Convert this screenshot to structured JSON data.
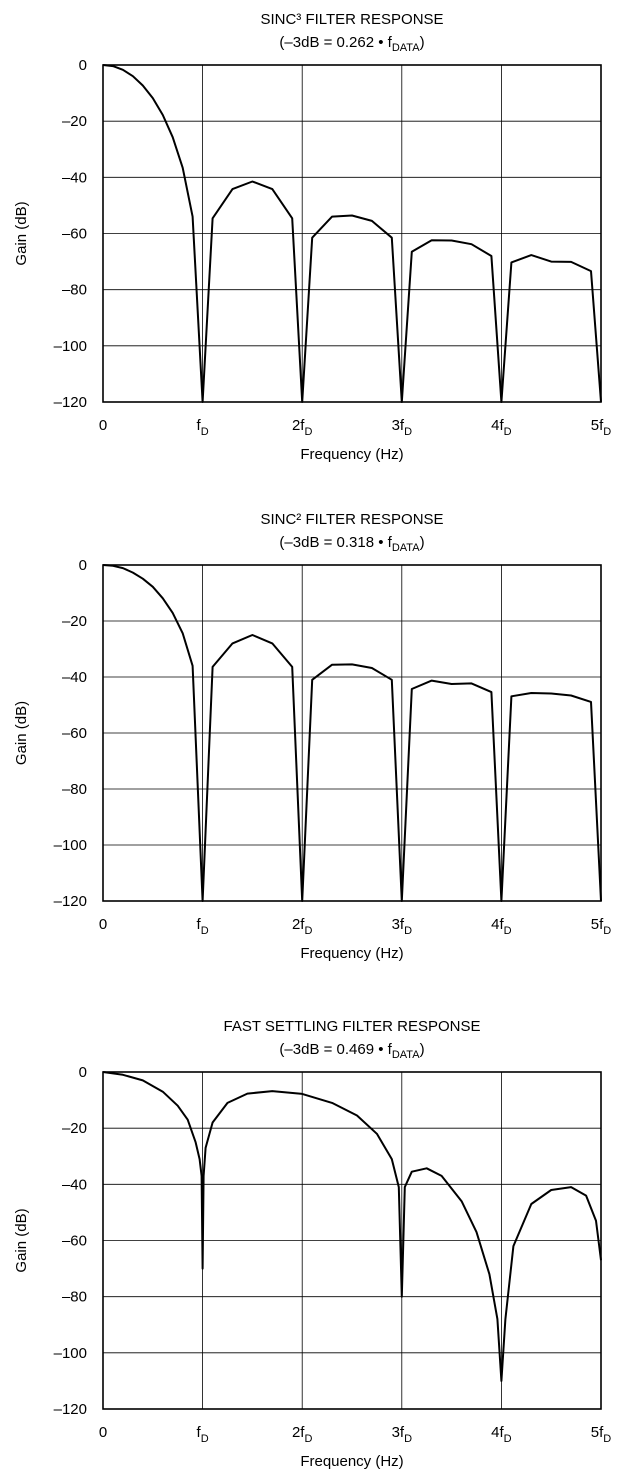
{
  "chart_data": [
    {
      "type": "line",
      "title": "SINC³ FILTER RESPONSE",
      "subtitle_parts": [
        "(–3dB = 0.262 • f",
        "DATA",
        ")"
      ],
      "xlabel": "Frequency (Hz)",
      "ylabel": "Gain (dB)",
      "xlim": [
        0,
        5
      ],
      "ylim": [
        -120,
        0
      ],
      "grid": true,
      "yticks": [
        "0",
        "–20",
        "–40",
        "–60",
        "–80",
        "–100",
        "–120"
      ],
      "yticks_values": [
        0,
        -20,
        -40,
        -60,
        -80,
        -100,
        -120
      ],
      "xticks": [
        {
          "value": 0,
          "main": "0",
          "sub": ""
        },
        {
          "value": 1,
          "main": "f",
          "sub": "D"
        },
        {
          "value": 2,
          "main": "2f",
          "sub": "D"
        },
        {
          "value": 3,
          "main": "3f",
          "sub": "D"
        },
        {
          "value": 4,
          "main": "4f",
          "sub": "D"
        },
        {
          "value": 5,
          "main": "5f",
          "sub": "D"
        }
      ],
      "series": [
        {
          "x": [
            0,
            0.1,
            0.2,
            0.3,
            0.4,
            0.5,
            0.6,
            0.7,
            0.8,
            0.9,
            1.0,
            1.1,
            1.3,
            1.5,
            1.7,
            1.9,
            2.0,
            2.1,
            2.3,
            2.5,
            2.7,
            2.9,
            3.0,
            3.1,
            3.3,
            3.5,
            3.7,
            3.9,
            4.0,
            4.1,
            4.3,
            4.5,
            4.7,
            4.9,
            5.0
          ],
          "y": [
            0,
            -0.4,
            -1.7,
            -4,
            -7.3,
            -11.8,
            -17.8,
            -25.7,
            -36.6,
            -54,
            -120,
            -54.6,
            -44.2,
            -41.5,
            -44.2,
            -54.6,
            -120,
            -61.5,
            -54.0,
            -53.6,
            -55.5,
            -61.5,
            -120,
            -66.5,
            -62.4,
            -62.5,
            -63.8,
            -68.0,
            -120,
            -70.3,
            -67.7,
            -70.0,
            -70.1,
            -73.4,
            -120
          ]
        }
      ]
    },
    {
      "type": "line",
      "title": "SINC² FILTER RESPONSE",
      "subtitle_parts": [
        "(–3dB = 0.318 • f",
        "DATA",
        ")"
      ],
      "xlabel": "Frequency (Hz)",
      "ylabel": "Gain (dB)",
      "xlim": [
        0,
        5
      ],
      "ylim": [
        -120,
        0
      ],
      "grid": true,
      "yticks": [
        "0",
        "–20",
        "–40",
        "–60",
        "–80",
        "–100",
        "–120"
      ],
      "yticks_values": [
        0,
        -20,
        -40,
        -60,
        -80,
        -100,
        -120
      ],
      "xticks": [
        {
          "value": 0,
          "main": "0",
          "sub": ""
        },
        {
          "value": 1,
          "main": "f",
          "sub": "D"
        },
        {
          "value": 2,
          "main": "2f",
          "sub": "D"
        },
        {
          "value": 3,
          "main": "3f",
          "sub": "D"
        },
        {
          "value": 4,
          "main": "4f",
          "sub": "D"
        },
        {
          "value": 5,
          "main": "5f",
          "sub": "D"
        }
      ],
      "series": [
        {
          "x": [
            0,
            0.1,
            0.2,
            0.3,
            0.4,
            0.5,
            0.6,
            0.7,
            0.8,
            0.9,
            1.0,
            1.1,
            1.3,
            1.5,
            1.7,
            1.9,
            2.0,
            2.1,
            2.3,
            2.5,
            2.7,
            2.9,
            3.0,
            3.1,
            3.3,
            3.5,
            3.7,
            3.9,
            4.0,
            4.1,
            4.3,
            4.5,
            4.7,
            4.9,
            5.0
          ],
          "y": [
            0,
            -0.3,
            -1.1,
            -2.7,
            -4.9,
            -7.8,
            -11.9,
            -17.1,
            -24.4,
            -36.0,
            -120,
            -36.4,
            -28.0,
            -25.0,
            -28.0,
            -36.4,
            -120,
            -41.0,
            -35.6,
            -35.5,
            -36.8,
            -41.0,
            -120,
            -44.3,
            -41.3,
            -42.5,
            -42.3,
            -45.4,
            -120,
            -46.9,
            -45.7,
            -45.9,
            -46.6,
            -48.9,
            -120
          ]
        }
      ]
    },
    {
      "type": "line",
      "title": "FAST SETTLING FILTER RESPONSE",
      "subtitle_parts": [
        "(–3dB = 0.469 • f",
        "DATA",
        ")"
      ],
      "xlabel": "Frequency (Hz)",
      "ylabel": "Gain (dB)",
      "xlim": [
        0,
        5
      ],
      "ylim": [
        -120,
        0
      ],
      "grid": true,
      "yticks": [
        "0",
        "–20",
        "–40",
        "–60",
        "–80",
        "–100",
        "–120"
      ],
      "yticks_values": [
        0,
        -20,
        -40,
        -60,
        -80,
        -100,
        -120
      ],
      "xticks": [
        {
          "value": 0,
          "main": "0",
          "sub": ""
        },
        {
          "value": 1,
          "main": "f",
          "sub": "D"
        },
        {
          "value": 2,
          "main": "2f",
          "sub": "D"
        },
        {
          "value": 3,
          "main": "3f",
          "sub": "D"
        },
        {
          "value": 4,
          "main": "4f",
          "sub": "D"
        },
        {
          "value": 5,
          "main": "5f",
          "sub": "D"
        }
      ],
      "series": [
        {
          "x": [
            0,
            0.2,
            0.4,
            0.6,
            0.75,
            0.85,
            0.93,
            0.97,
            0.99,
            1.0,
            1.01,
            1.03,
            1.1,
            1.25,
            1.45,
            1.7,
            2.0,
            2.3,
            2.55,
            2.75,
            2.9,
            2.97,
            3.0,
            3.03,
            3.1,
            3.25,
            3.4,
            3.6,
            3.75,
            3.88,
            3.96,
            4.0,
            4.04,
            4.12,
            4.3,
            4.5,
            4.7,
            4.85,
            4.95,
            5.0
          ],
          "y": [
            0,
            -1,
            -3,
            -7,
            -12,
            -17,
            -25,
            -31,
            -37,
            -70,
            -37,
            -27,
            -18,
            -11,
            -7.7,
            -6.8,
            -7.8,
            -11,
            -15.5,
            -22,
            -31,
            -41,
            -80,
            -41,
            -35.5,
            -34.3,
            -37,
            -46,
            -57,
            -72,
            -88,
            -110,
            -88,
            -62,
            -47,
            -42,
            -41,
            -44,
            -53,
            -67
          ]
        }
      ]
    }
  ]
}
